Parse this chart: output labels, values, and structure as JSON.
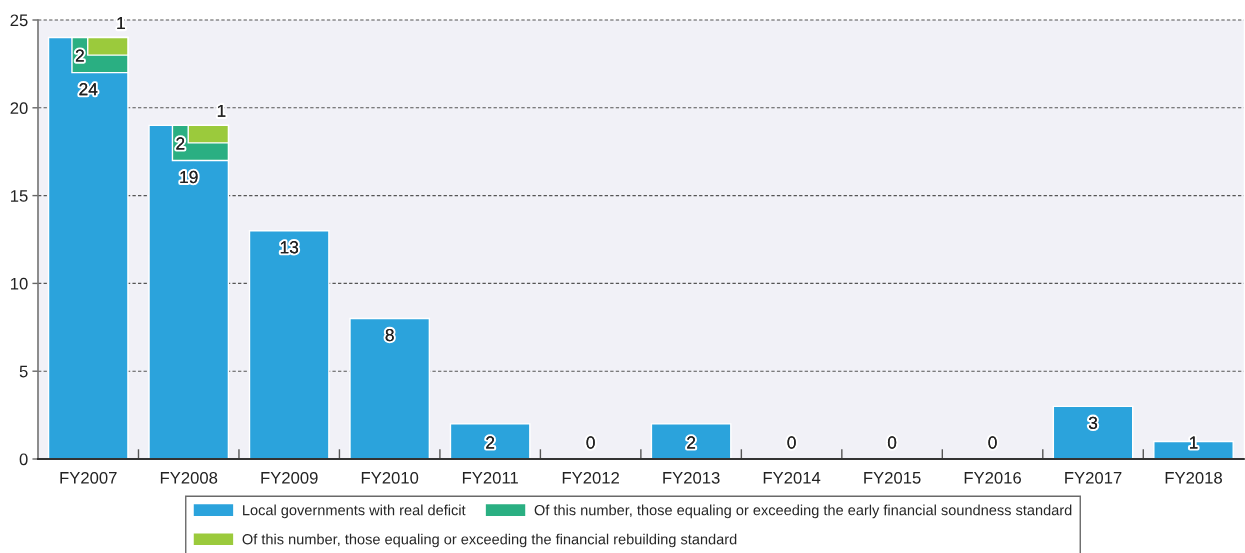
{
  "chart_data": {
    "type": "bar",
    "categories": [
      "FY2007",
      "FY2008",
      "FY2009",
      "FY2010",
      "FY2011",
      "FY2012",
      "FY2013",
      "FY2014",
      "FY2015",
      "FY2016",
      "FY2017",
      "FY2018"
    ],
    "series": [
      {
        "name": "Local governments with real deficit",
        "color": "#2ba3dc",
        "values": [
          24,
          19,
          13,
          8,
          2,
          0,
          2,
          0,
          0,
          0,
          3,
          1
        ]
      },
      {
        "name": "Of this number, those equaling or exceeding the early financial soundness standard",
        "color": "#2aaf82",
        "values": [
          2,
          2,
          null,
          null,
          null,
          null,
          null,
          null,
          null,
          null,
          null,
          null
        ],
        "base": [
          22,
          17,
          null,
          null,
          null,
          null,
          null,
          null,
          null,
          null,
          null,
          null
        ]
      },
      {
        "name": "Of this number, those equaling or exceeding the financial rebuilding standard",
        "color": "#9bca3c",
        "values": [
          1,
          1,
          null,
          null,
          null,
          null,
          null,
          null,
          null,
          null,
          null,
          null
        ],
        "base": [
          23,
          18,
          null,
          null,
          null,
          null,
          null,
          null,
          null,
          null,
          null,
          null
        ]
      }
    ],
    "ylim": [
      0,
      25
    ],
    "yticks": [
      0,
      5,
      10,
      15,
      20,
      25
    ],
    "grid": "y",
    "legend": "bottom",
    "data_labels": true
  }
}
